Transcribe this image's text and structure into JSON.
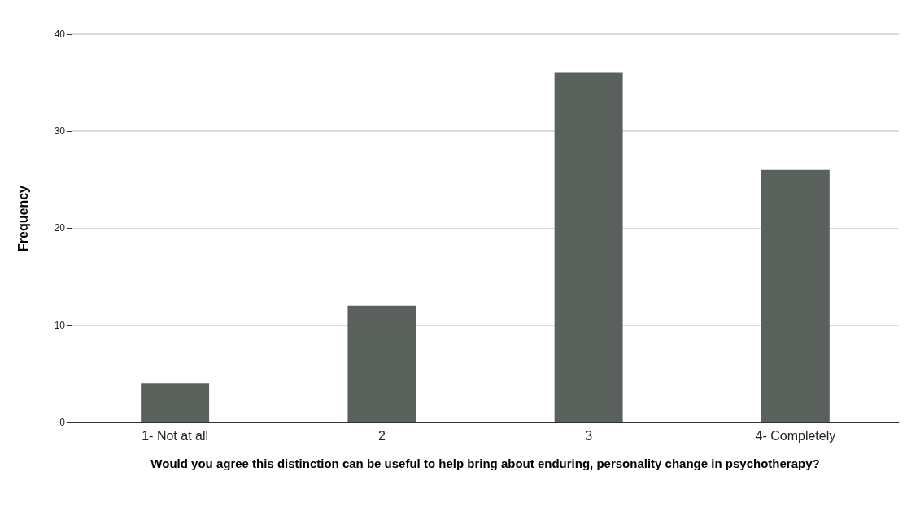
{
  "chart_data": {
    "type": "bar",
    "xlabel": "Would you agree this distinction can be useful to help bring about enduring, personality change in psychotherapy?",
    "ylabel": "Frequency",
    "categories": [
      "1- Not at all",
      "2",
      "3",
      "4- Completely"
    ],
    "values": [
      4,
      12,
      36,
      26
    ],
    "color": "#5a615c",
    "ylim": [
      0,
      42
    ],
    "yticks": [
      0,
      10,
      20,
      30,
      40
    ],
    "grid": "y"
  }
}
